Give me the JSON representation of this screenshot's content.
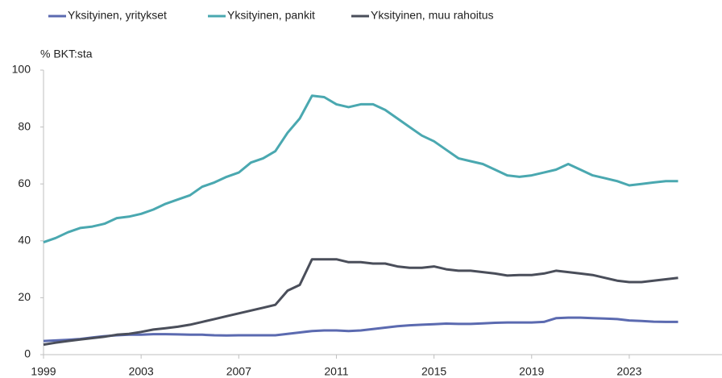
{
  "chart_data": {
    "type": "line",
    "y_axis_label": "% BKT:sta",
    "x": [
      1999,
      1999.5,
      2000,
      2000.5,
      2001,
      2001.5,
      2002,
      2002.5,
      2003,
      2003.5,
      2004,
      2004.5,
      2005,
      2005.5,
      2006,
      2006.5,
      2007,
      2007.5,
      2008,
      2008.5,
      2009,
      2009.5,
      2010,
      2010.5,
      2011,
      2011.5,
      2012,
      2012.5,
      2013,
      2013.5,
      2014,
      2014.5,
      2015,
      2015.5,
      2016,
      2016.5,
      2017,
      2017.5,
      2018,
      2018.5,
      2019,
      2019.5,
      2020,
      2020.5,
      2021,
      2021.5,
      2022,
      2022.5,
      2023,
      2023.5,
      2024,
      2024.5,
      2025
    ],
    "series": [
      {
        "name": "Yksityinen, yritykset",
        "color": "#5b6ab0",
        "values": [
          4.8,
          5,
          5.2,
          5.5,
          6,
          6.5,
          6.8,
          7,
          7,
          7.2,
          7.2,
          7.1,
          7,
          7,
          6.8,
          6.7,
          6.8,
          6.8,
          6.8,
          6.8,
          7.3,
          7.8,
          8.3,
          8.5,
          8.5,
          8.3,
          8.5,
          9,
          9.5,
          10,
          10.3,
          10.5,
          10.7,
          10.9,
          10.8,
          10.8,
          11,
          11.2,
          11.3,
          11.3,
          11.3,
          11.5,
          12.8,
          13,
          13,
          12.8,
          12.7,
          12.5,
          12,
          11.8,
          11.6,
          11.5,
          11.5
        ]
      },
      {
        "name": "Yksityinen, pankit",
        "color": "#4aa8b0",
        "values": [
          39.5,
          41,
          43,
          44.5,
          45,
          46,
          48,
          48.5,
          49.5,
          51,
          53,
          54.5,
          56,
          59,
          60.5,
          62.5,
          64,
          67.5,
          69,
          71.5,
          78,
          83,
          91,
          90.5,
          88,
          87,
          88,
          88,
          86,
          83,
          80,
          77,
          75,
          72,
          69,
          68,
          67,
          65,
          63,
          62.5,
          63,
          64,
          65,
          67,
          65,
          63,
          62,
          61,
          59.5,
          60,
          60.5,
          61,
          61
        ]
      },
      {
        "name": "Yksityinen, muu rahoitus",
        "color": "#4a4e5a",
        "values": [
          3.5,
          4.2,
          4.8,
          5.3,
          5.8,
          6.3,
          7,
          7.3,
          8,
          8.8,
          9.3,
          9.8,
          10.5,
          11.5,
          12.5,
          13.5,
          14.5,
          15.5,
          16.5,
          17.5,
          22.5,
          24.5,
          33.5,
          33.5,
          33.5,
          32.5,
          32.5,
          32,
          32,
          31,
          30.5,
          30.5,
          31,
          30,
          29.5,
          29.5,
          29,
          28.5,
          27.8,
          28,
          28,
          28.5,
          29.5,
          29,
          28.5,
          28,
          27,
          26,
          25.5,
          25.5,
          26,
          26.5,
          27
        ]
      }
    ],
    "xlim": [
      1999,
      2026.8
    ],
    "xticks": [
      1999,
      2003,
      2007,
      2011,
      2015,
      2019,
      2023
    ],
    "ylim": [
      0,
      100
    ],
    "yticks": [
      0,
      20,
      40,
      60,
      80,
      100
    ],
    "grid": false,
    "legend": "top"
  }
}
